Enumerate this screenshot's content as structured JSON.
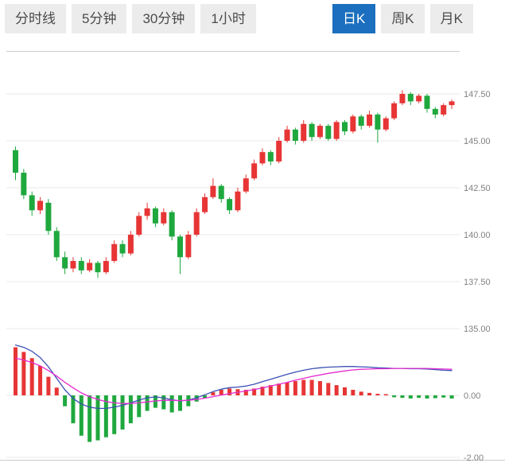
{
  "tabs": [
    {
      "label": "分时线",
      "selected": false
    },
    {
      "label": "5分钟",
      "selected": false
    },
    {
      "label": "30分钟",
      "selected": false
    },
    {
      "label": "1小时",
      "selected": false
    },
    {
      "label": "日K",
      "selected": true
    },
    {
      "label": "周K",
      "selected": false
    },
    {
      "label": "月K",
      "selected": false
    }
  ],
  "colors": {
    "up": "#e73535",
    "down": "#1fa83e",
    "dif_line": "#3c50b4",
    "dea_line": "#e52bd0",
    "grid": "#e9e9e9",
    "border": "#cccccc",
    "axis_text": "#808080",
    "active_tab": "#1b6fbe",
    "tab_bg": "#ececec"
  },
  "chart_data": {
    "type": "candlestick_with_macd",
    "title": "",
    "legend_position": "none",
    "grid": true,
    "price_axis": {
      "ticks": [
        147.5,
        145.0,
        142.5,
        140.0,
        137.5,
        135.0
      ],
      "labels": [
        "147.50",
        "145.00",
        "142.50",
        "140.00",
        "137.50",
        "135.00"
      ]
    },
    "macd_axis": {
      "ticks": [
        0,
        -2
      ],
      "labels": [
        "0.00",
        "-2.00"
      ]
    },
    "candles": [
      [
        144.5,
        144.7,
        142.9,
        143.3
      ],
      [
        143.3,
        143.5,
        141.9,
        142.1
      ],
      [
        142.1,
        142.3,
        141.0,
        141.3
      ],
      [
        141.3,
        142.0,
        141.1,
        141.8
      ],
      [
        141.7,
        141.9,
        140.0,
        140.2
      ],
      [
        140.2,
        140.4,
        138.6,
        138.8
      ],
      [
        138.8,
        139.1,
        137.9,
        138.2
      ],
      [
        138.2,
        138.8,
        138.0,
        138.6
      ],
      [
        138.6,
        138.8,
        137.9,
        138.1
      ],
      [
        138.1,
        138.7,
        138.0,
        138.5
      ],
      [
        138.5,
        138.6,
        137.7,
        138.0
      ],
      [
        138.0,
        138.8,
        137.9,
        138.6
      ],
      [
        138.6,
        139.7,
        138.5,
        139.5
      ],
      [
        139.5,
        139.7,
        138.8,
        139.0
      ],
      [
        139.0,
        140.2,
        138.9,
        140.0
      ],
      [
        140.0,
        141.2,
        139.9,
        141.0
      ],
      [
        141.0,
        141.7,
        140.8,
        141.4
      ],
      [
        141.4,
        141.5,
        140.4,
        140.6
      ],
      [
        140.6,
        141.4,
        140.5,
        141.2
      ],
      [
        141.2,
        141.3,
        139.7,
        139.9
      ],
      [
        139.9,
        140.0,
        137.9,
        138.8
      ],
      [
        138.8,
        140.2,
        138.7,
        140.0
      ],
      [
        140.0,
        141.4,
        139.9,
        141.2
      ],
      [
        141.2,
        142.2,
        141.1,
        142.0
      ],
      [
        142.0,
        143.0,
        141.9,
        142.6
      ],
      [
        142.6,
        142.7,
        141.7,
        141.9
      ],
      [
        141.9,
        142.0,
        141.1,
        141.3
      ],
      [
        141.3,
        142.5,
        141.2,
        142.3
      ],
      [
        142.3,
        143.2,
        142.2,
        143.0
      ],
      [
        143.0,
        144.0,
        142.9,
        143.8
      ],
      [
        143.8,
        144.6,
        143.7,
        144.4
      ],
      [
        144.4,
        144.5,
        143.7,
        143.9
      ],
      [
        143.9,
        145.2,
        143.8,
        145.0
      ],
      [
        145.0,
        145.8,
        144.9,
        145.6
      ],
      [
        145.6,
        145.7,
        144.8,
        145.0
      ],
      [
        145.0,
        146.1,
        144.9,
        145.9
      ],
      [
        145.9,
        146.0,
        145.0,
        145.2
      ],
      [
        145.2,
        145.9,
        145.1,
        145.8
      ],
      [
        145.8,
        145.9,
        145.0,
        145.1
      ],
      [
        145.1,
        146.1,
        145.0,
        146.0
      ],
      [
        146.0,
        146.1,
        145.3,
        145.5
      ],
      [
        145.5,
        146.4,
        145.4,
        146.3
      ],
      [
        146.3,
        146.4,
        145.6,
        145.8
      ],
      [
        145.8,
        146.6,
        145.7,
        146.4
      ],
      [
        146.4,
        146.5,
        144.9,
        145.6
      ],
      [
        145.6,
        146.3,
        145.5,
        146.2
      ],
      [
        146.2,
        147.1,
        146.1,
        147.0
      ],
      [
        147.0,
        147.7,
        146.9,
        147.5
      ],
      [
        147.5,
        147.6,
        146.9,
        147.1
      ],
      [
        147.1,
        147.5,
        147.0,
        147.4
      ],
      [
        147.4,
        147.5,
        146.5,
        146.7
      ],
      [
        146.7,
        146.8,
        146.2,
        146.4
      ],
      [
        146.4,
        147.0,
        146.3,
        146.9
      ],
      [
        146.9,
        147.2,
        146.7,
        147.1
      ]
    ],
    "macd": {
      "hist": [
        1.55,
        1.4,
        1.2,
        0.95,
        0.6,
        0.25,
        -0.35,
        -0.9,
        -1.3,
        -1.5,
        -1.45,
        -1.35,
        -1.25,
        -1.1,
        -0.9,
        -0.7,
        -0.5,
        -0.4,
        -0.45,
        -0.55,
        -0.5,
        -0.35,
        -0.2,
        -0.08,
        0.1,
        0.18,
        0.22,
        0.2,
        0.18,
        0.22,
        0.28,
        0.33,
        0.38,
        0.42,
        0.46,
        0.5,
        0.5,
        0.46,
        0.4,
        0.33,
        0.26,
        0.18,
        0.12,
        0.08,
        0.05,
        0.04,
        -0.06,
        -0.08,
        -0.1,
        -0.08,
        -0.1,
        -0.09,
        -0.07,
        -0.1
      ],
      "dif": [
        1.62,
        1.55,
        1.42,
        1.22,
        0.92,
        0.55,
        0.18,
        -0.1,
        -0.28,
        -0.38,
        -0.42,
        -0.42,
        -0.38,
        -0.32,
        -0.24,
        -0.15,
        -0.08,
        -0.05,
        -0.08,
        -0.14,
        -0.18,
        -0.15,
        -0.08,
        0.02,
        0.12,
        0.2,
        0.25,
        0.27,
        0.3,
        0.36,
        0.44,
        0.52,
        0.6,
        0.68,
        0.75,
        0.81,
        0.86,
        0.89,
        0.91,
        0.92,
        0.93,
        0.93,
        0.92,
        0.91,
        0.89,
        0.88,
        0.87,
        0.87,
        0.86,
        0.86,
        0.85,
        0.83,
        0.81,
        0.8
      ],
      "dea": [
        1.2,
        1.14,
        1.06,
        0.95,
        0.8,
        0.62,
        0.42,
        0.24,
        0.08,
        -0.04,
        -0.13,
        -0.2,
        -0.24,
        -0.26,
        -0.26,
        -0.24,
        -0.21,
        -0.18,
        -0.16,
        -0.16,
        -0.17,
        -0.16,
        -0.13,
        -0.09,
        -0.04,
        0.01,
        0.06,
        0.1,
        0.14,
        0.19,
        0.24,
        0.3,
        0.36,
        0.42,
        0.49,
        0.55,
        0.61,
        0.66,
        0.71,
        0.75,
        0.79,
        0.82,
        0.84,
        0.85,
        0.86,
        0.86,
        0.87,
        0.87,
        0.87,
        0.87,
        0.87,
        0.86,
        0.85,
        0.84
      ]
    }
  }
}
